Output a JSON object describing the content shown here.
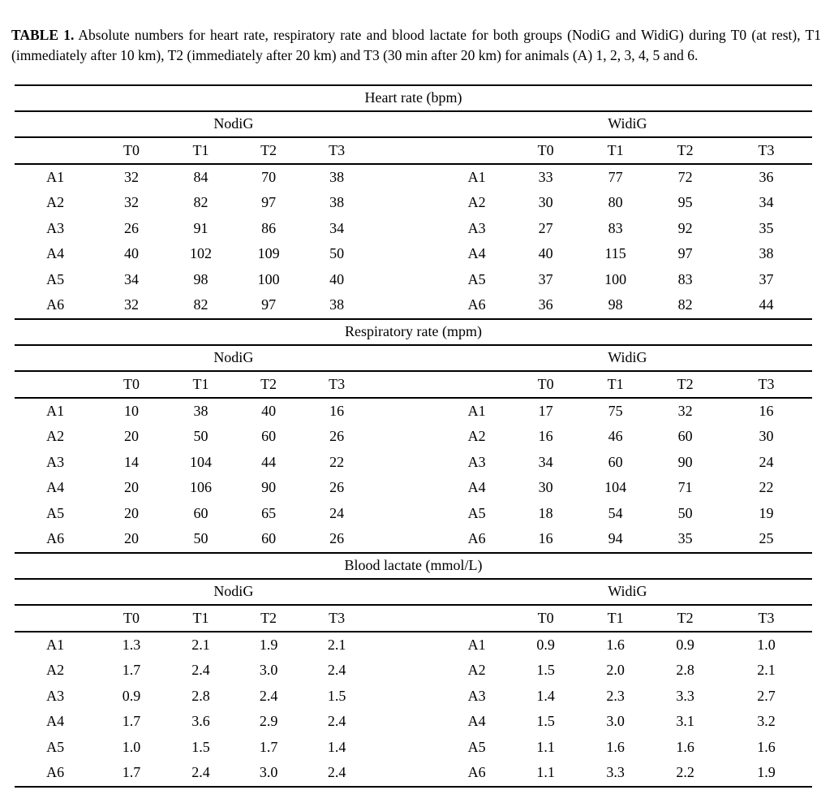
{
  "caption": {
    "label": "TABLE 1.",
    "text": "Absolute numbers for heart rate, respiratory rate and blood lactate for both groups (NodiG and WidiG) during T0 (at rest), T1 (immediately after 10 km), T2 (immediately after 20 km) and T3 (30 min after 20 km) for animals (A) 1, 2, 3, 4, 5 and 6."
  },
  "groups": [
    "NodiG",
    "WidiG"
  ],
  "time_points": [
    "T0",
    "T1",
    "T2",
    "T3"
  ],
  "sections": [
    {
      "title": "Heart rate (bpm)",
      "rows": [
        {
          "label": "A1",
          "left": [
            "32",
            "84",
            "70",
            "38"
          ],
          "right": [
            "33",
            "77",
            "72",
            "36"
          ]
        },
        {
          "label": "A2",
          "left": [
            "32",
            "82",
            "97",
            "38"
          ],
          "right": [
            "30",
            "80",
            "95",
            "34"
          ]
        },
        {
          "label": "A3",
          "left": [
            "26",
            "91",
            "86",
            "34"
          ],
          "right": [
            "27",
            "83",
            "92",
            "35"
          ]
        },
        {
          "label": "A4",
          "left": [
            "40",
            "102",
            "109",
            "50"
          ],
          "right": [
            "40",
            "115",
            "97",
            "38"
          ]
        },
        {
          "label": "A5",
          "left": [
            "34",
            "98",
            "100",
            "40"
          ],
          "right": [
            "37",
            "100",
            "83",
            "37"
          ]
        },
        {
          "label": "A6",
          "left": [
            "32",
            "82",
            "97",
            "38"
          ],
          "right": [
            "36",
            "98",
            "82",
            "44"
          ]
        }
      ]
    },
    {
      "title": "Respiratory rate (mpm)",
      "rows": [
        {
          "label": "A1",
          "left": [
            "10",
            "38",
            "40",
            "16"
          ],
          "right": [
            "17",
            "75",
            "32",
            "16"
          ]
        },
        {
          "label": "A2",
          "left": [
            "20",
            "50",
            "60",
            "26"
          ],
          "right": [
            "16",
            "46",
            "60",
            "30"
          ]
        },
        {
          "label": "A3",
          "left": [
            "14",
            "104",
            "44",
            "22"
          ],
          "right": [
            "34",
            "60",
            "90",
            "24"
          ]
        },
        {
          "label": "A4",
          "left": [
            "20",
            "106",
            "90",
            "26"
          ],
          "right": [
            "30",
            "104",
            "71",
            "22"
          ]
        },
        {
          "label": "A5",
          "left": [
            "20",
            "60",
            "65",
            "24"
          ],
          "right": [
            "18",
            "54",
            "50",
            "19"
          ]
        },
        {
          "label": "A6",
          "left": [
            "20",
            "50",
            "60",
            "26"
          ],
          "right": [
            "16",
            "94",
            "35",
            "25"
          ]
        }
      ]
    },
    {
      "title": "Blood lactate (mmol/L)",
      "rows": [
        {
          "label": "A1",
          "left": [
            "1.3",
            "2.1",
            "1.9",
            "2.1"
          ],
          "right": [
            "0.9",
            "1.6",
            "0.9",
            "1.0"
          ]
        },
        {
          "label": "A2",
          "left": [
            "1.7",
            "2.4",
            "3.0",
            "2.4"
          ],
          "right": [
            "1.5",
            "2.0",
            "2.8",
            "2.1"
          ]
        },
        {
          "label": "A3",
          "left": [
            "0.9",
            "2.8",
            "2.4",
            "1.5"
          ],
          "right": [
            "1.4",
            "2.3",
            "3.3",
            "2.7"
          ]
        },
        {
          "label": "A4",
          "left": [
            "1.7",
            "3.6",
            "2.9",
            "2.4"
          ],
          "right": [
            "1.5",
            "3.0",
            "3.1",
            "3.2"
          ]
        },
        {
          "label": "A5",
          "left": [
            "1.0",
            "1.5",
            "1.7",
            "1.4"
          ],
          "right": [
            "1.1",
            "1.6",
            "1.6",
            "1.6"
          ]
        },
        {
          "label": "A6",
          "left": [
            "1.7",
            "2.4",
            "3.0",
            "2.4"
          ],
          "right": [
            "1.1",
            "3.3",
            "2.2",
            "1.9"
          ]
        }
      ]
    }
  ]
}
